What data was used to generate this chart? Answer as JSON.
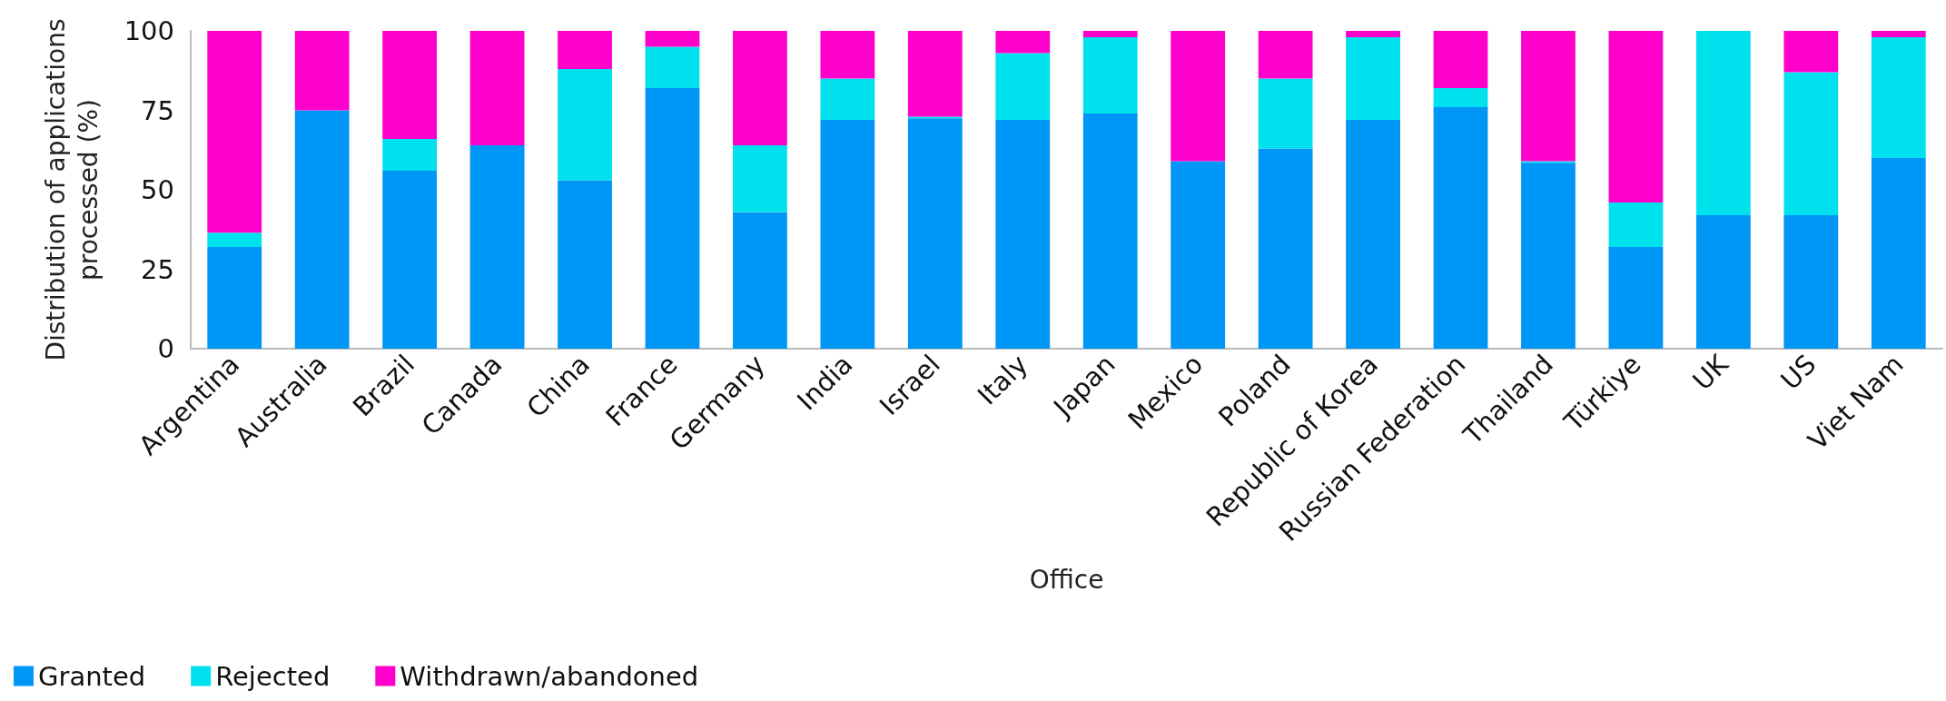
{
  "chart_data": {
    "type": "bar",
    "stacked": true,
    "xlabel": "Office",
    "ylabel": "Distribution of applications\nprocessed (%)",
    "categories": [
      "Argentina",
      "Australia",
      "Brazil",
      "Canada",
      "China",
      "France",
      "Germany",
      "India",
      "Israel",
      "Italy",
      "Japan",
      "Mexico",
      "Poland",
      "Republic of Korea",
      "Russian Federation",
      "Thailand",
      "Türkiye",
      "UK",
      "US",
      "Viet Nam"
    ],
    "series": [
      {
        "name": "Granted",
        "color": "#0096f5",
        "values": [
          32,
          75,
          56,
          64,
          53,
          82,
          43,
          72,
          72.5,
          72,
          74,
          59,
          63,
          72,
          76,
          58.5,
          32,
          42,
          42,
          60
        ]
      },
      {
        "name": "Rejected",
        "color": "#00e1ee",
        "values": [
          4.5,
          0,
          10,
          0,
          35,
          13,
          21,
          13,
          0.5,
          21,
          24,
          0,
          22,
          26,
          6,
          0.5,
          14,
          58,
          45,
          38
        ]
      },
      {
        "name": "Withdrawn/abandoned",
        "color": "#ff00cc",
        "values": [
          63.5,
          25,
          34,
          36,
          12,
          5,
          36,
          15,
          27,
          7,
          2,
          41,
          15,
          2,
          18,
          41,
          54,
          0,
          13,
          2
        ]
      }
    ],
    "ylim": [
      0,
      100
    ],
    "yticks": [
      0,
      25,
      50,
      75,
      100
    ],
    "grid": false,
    "legend": "bottom left"
  }
}
